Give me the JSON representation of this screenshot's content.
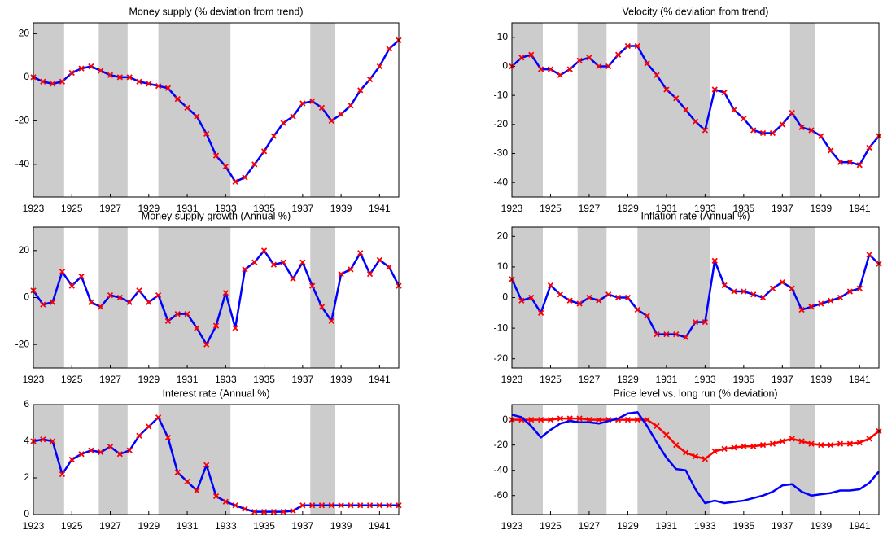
{
  "chart_data": [
    {
      "type": "line",
      "title": "Money supply (% deviation from trend)",
      "x": [
        1923,
        1923.5,
        1924,
        1924.5,
        1925,
        1925.5,
        1926,
        1926.5,
        1927,
        1927.5,
        1928,
        1928.5,
        1929,
        1929.5,
        1930,
        1930.5,
        1931,
        1931.5,
        1932,
        1932.5,
        1933,
        1933.5,
        1934,
        1934.5,
        1935,
        1935.5,
        1936,
        1936.5,
        1937,
        1937.5,
        1938,
        1938.5,
        1939,
        1939.5,
        1940,
        1940.5,
        1941,
        1941.5,
        1942
      ],
      "xlim": [
        1923,
        1942
      ],
      "xticks": [
        1923,
        1925,
        1927,
        1929,
        1931,
        1933,
        1935,
        1937,
        1939,
        1941
      ],
      "ylim": [
        -55,
        25
      ],
      "yticks": [
        -40,
        -20,
        0,
        20
      ],
      "shading": [
        [
          1923,
          1924.6
        ],
        [
          1926.4,
          1927.9
        ],
        [
          1929.5,
          1933.25
        ],
        [
          1937.4,
          1938.7
        ]
      ],
      "shading_color": "#cccccc",
      "series": [
        {
          "color": "#0000ff",
          "marker_color": "#ff0000",
          "values": [
            0,
            -2,
            -3,
            -2,
            2,
            4,
            5,
            3,
            1,
            0,
            0,
            -2,
            -3,
            -4,
            -5,
            -10,
            -14,
            -18,
            -26,
            -36,
            -41,
            -48,
            -46,
            -40,
            -34,
            -27,
            -21,
            -18,
            -12,
            -11,
            -14,
            -20,
            -17,
            -13,
            -6,
            -1,
            5,
            13,
            17
          ]
        }
      ]
    },
    {
      "type": "line",
      "title": "Velocity (% deviation from trend)",
      "x": [
        1923,
        1923.5,
        1924,
        1924.5,
        1925,
        1925.5,
        1926,
        1926.5,
        1927,
        1927.5,
        1928,
        1928.5,
        1929,
        1929.5,
        1930,
        1930.5,
        1931,
        1931.5,
        1932,
        1932.5,
        1933,
        1933.5,
        1934,
        1934.5,
        1935,
        1935.5,
        1936,
        1936.5,
        1937,
        1937.5,
        1938,
        1938.5,
        1939,
        1939.5,
        1940,
        1940.5,
        1941,
        1941.5,
        1942
      ],
      "xlim": [
        1923,
        1942
      ],
      "xticks": [
        1923,
        1925,
        1927,
        1929,
        1931,
        1933,
        1935,
        1937,
        1939,
        1941
      ],
      "ylim": [
        -45,
        15
      ],
      "yticks": [
        -40,
        -30,
        -20,
        -10,
        0,
        10
      ],
      "shading": [
        [
          1923,
          1924.6
        ],
        [
          1926.4,
          1927.9
        ],
        [
          1929.5,
          1933.25
        ],
        [
          1937.4,
          1938.7
        ]
      ],
      "shading_color": "#cccccc",
      "series": [
        {
          "color": "#0000ff",
          "marker_color": "#ff0000",
          "values": [
            0,
            3,
            4,
            -1,
            -1,
            -3,
            -1,
            2,
            3,
            0,
            0,
            4,
            7,
            7,
            1,
            -3,
            -8,
            -11,
            -15,
            -19,
            -22,
            -8,
            -9,
            -15,
            -18,
            -22,
            -23,
            -23,
            -20,
            -16,
            -21,
            -22,
            -24,
            -29,
            -33,
            -33,
            -34,
            -28,
            -24
          ]
        }
      ]
    },
    {
      "type": "line",
      "title": "Money supply growth (Annual %)",
      "x": [
        1923,
        1923.5,
        1924,
        1924.5,
        1925,
        1925.5,
        1926,
        1926.5,
        1927,
        1927.5,
        1928,
        1928.5,
        1929,
        1929.5,
        1930,
        1930.5,
        1931,
        1931.5,
        1932,
        1932.5,
        1933,
        1933.5,
        1934,
        1934.5,
        1935,
        1935.5,
        1936,
        1936.5,
        1937,
        1937.5,
        1938,
        1938.5,
        1939,
        1939.5,
        1940,
        1940.5,
        1941,
        1941.5,
        1942
      ],
      "xlim": [
        1923,
        1942
      ],
      "xticks": [
        1923,
        1925,
        1927,
        1929,
        1931,
        1933,
        1935,
        1937,
        1939,
        1941
      ],
      "ylim": [
        -30,
        30
      ],
      "yticks": [
        -20,
        0,
        20
      ],
      "shading": [
        [
          1923,
          1924.6
        ],
        [
          1926.4,
          1927.9
        ],
        [
          1929.5,
          1933.25
        ],
        [
          1937.4,
          1938.7
        ]
      ],
      "shading_color": "#cccccc",
      "series": [
        {
          "color": "#0000ff",
          "marker_color": "#ff0000",
          "values": [
            3,
            -3,
            -2,
            11,
            5,
            9,
            -2,
            -4,
            1,
            0,
            -2,
            3,
            -2,
            1,
            -10,
            -7,
            -7,
            -13,
            -20,
            -12,
            2,
            -13,
            12,
            15,
            20,
            14,
            15,
            8,
            15,
            5,
            -4,
            -10,
            10,
            12,
            19,
            10,
            16,
            13,
            5
          ]
        }
      ]
    },
    {
      "type": "line",
      "title": "Inflation rate (Annual %)",
      "x": [
        1923,
        1923.5,
        1924,
        1924.5,
        1925,
        1925.5,
        1926,
        1926.5,
        1927,
        1927.5,
        1928,
        1928.5,
        1929,
        1929.5,
        1930,
        1930.5,
        1931,
        1931.5,
        1932,
        1932.5,
        1933,
        1933.5,
        1934,
        1934.5,
        1935,
        1935.5,
        1936,
        1936.5,
        1937,
        1937.5,
        1938,
        1938.5,
        1939,
        1939.5,
        1940,
        1940.5,
        1941,
        1941.5,
        1942
      ],
      "xlim": [
        1923,
        1942
      ],
      "xticks": [
        1923,
        1925,
        1927,
        1929,
        1931,
        1933,
        1935,
        1937,
        1939,
        1941
      ],
      "ylim": [
        -23,
        23
      ],
      "yticks": [
        -20,
        -10,
        0,
        10,
        20
      ],
      "shading": [
        [
          1923,
          1924.6
        ],
        [
          1926.4,
          1927.9
        ],
        [
          1929.5,
          1933.25
        ],
        [
          1937.4,
          1938.7
        ]
      ],
      "shading_color": "#cccccc",
      "series": [
        {
          "color": "#0000ff",
          "marker_color": "#ff0000",
          "values": [
            6,
            -1,
            0,
            -5,
            4,
            1,
            -1,
            -2,
            0,
            -1,
            1,
            0,
            0,
            -4,
            -6,
            -12,
            -12,
            -12,
            -13,
            -8,
            -8,
            12,
            4,
            2,
            2,
            1,
            0,
            3,
            5,
            3,
            -4,
            -3,
            -2,
            -1,
            0,
            2,
            3,
            14,
            11
          ]
        }
      ]
    },
    {
      "type": "line",
      "title": "Interest rate (Annual %)",
      "x": [
        1923,
        1923.5,
        1924,
        1924.5,
        1925,
        1925.5,
        1926,
        1926.5,
        1927,
        1927.5,
        1928,
        1928.5,
        1929,
        1929.5,
        1930,
        1930.5,
        1931,
        1931.5,
        1932,
        1932.5,
        1933,
        1933.5,
        1934,
        1934.5,
        1935,
        1935.5,
        1936,
        1936.5,
        1937,
        1937.5,
        1938,
        1938.5,
        1939,
        1939.5,
        1940,
        1940.5,
        1941,
        1941.5,
        1942
      ],
      "xlim": [
        1923,
        1942
      ],
      "xticks": [
        1923,
        1925,
        1927,
        1929,
        1931,
        1933,
        1935,
        1937,
        1939,
        1941
      ],
      "ylim": [
        0,
        6
      ],
      "yticks": [
        0,
        2,
        4,
        6
      ],
      "shading": [
        [
          1923,
          1924.6
        ],
        [
          1926.4,
          1927.9
        ],
        [
          1929.5,
          1933.25
        ],
        [
          1937.4,
          1938.7
        ]
      ],
      "shading_color": "#cccccc",
      "series": [
        {
          "color": "#0000ff",
          "marker_color": "#ff0000",
          "values": [
            4.0,
            4.1,
            4.0,
            2.2,
            3.0,
            3.3,
            3.5,
            3.4,
            3.7,
            3.3,
            3.5,
            4.3,
            4.8,
            5.3,
            4.2,
            2.3,
            1.8,
            1.3,
            2.7,
            1.0,
            0.7,
            0.5,
            0.3,
            0.15,
            0.15,
            0.15,
            0.15,
            0.2,
            0.5,
            0.5,
            0.5,
            0.5,
            0.5,
            0.5,
            0.5,
            0.5,
            0.5,
            0.5,
            0.5
          ]
        }
      ]
    },
    {
      "type": "line",
      "title": "Price level vs. long run (% deviation)",
      "x": [
        1923,
        1923.5,
        1924,
        1924.5,
        1925,
        1925.5,
        1926,
        1926.5,
        1927,
        1927.5,
        1928,
        1928.5,
        1929,
        1929.5,
        1930,
        1930.5,
        1931,
        1931.5,
        1932,
        1932.5,
        1933,
        1933.5,
        1934,
        1934.5,
        1935,
        1935.5,
        1936,
        1936.5,
        1937,
        1937.5,
        1938,
        1938.5,
        1939,
        1939.5,
        1940,
        1940.5,
        1941,
        1941.5,
        1942
      ],
      "xlim": [
        1923,
        1942
      ],
      "xticks": [
        1923,
        1925,
        1927,
        1929,
        1931,
        1933,
        1935,
        1937,
        1939,
        1941
      ],
      "ylim": [
        -75,
        12
      ],
      "yticks": [
        -60,
        -40,
        -20,
        0
      ],
      "shading": [
        [
          1923,
          1924.6
        ],
        [
          1926.4,
          1927.9
        ],
        [
          1929.5,
          1933.25
        ],
        [
          1937.4,
          1938.7
        ]
      ],
      "shading_color": "#cccccc",
      "series": [
        {
          "color": "#ff0000",
          "marker_color": "#ff0000",
          "values": [
            0,
            0,
            0,
            0,
            0,
            1,
            1,
            1,
            0,
            0,
            0,
            0,
            0,
            0,
            0,
            -5,
            -12,
            -20,
            -26,
            -29,
            -31,
            -25,
            -23,
            -22,
            -21,
            -21,
            -20,
            -19,
            -17,
            -15,
            -17,
            -19,
            -20,
            -20,
            -19,
            -19,
            -18,
            -15,
            -9
          ]
        },
        {
          "color": "#0000ff",
          "values": [
            4,
            2,
            -5,
            -14,
            -8,
            -3,
            -1,
            -2,
            -2,
            -3,
            -1,
            1,
            5,
            6,
            -5,
            -18,
            -30,
            -39,
            -40,
            -55,
            -66,
            -64,
            -66,
            -65,
            -64,
            -62,
            -60,
            -57,
            -52,
            -51,
            -57,
            -60,
            -59,
            -58,
            -56,
            -56,
            -55,
            -50,
            -41
          ]
        }
      ]
    }
  ]
}
